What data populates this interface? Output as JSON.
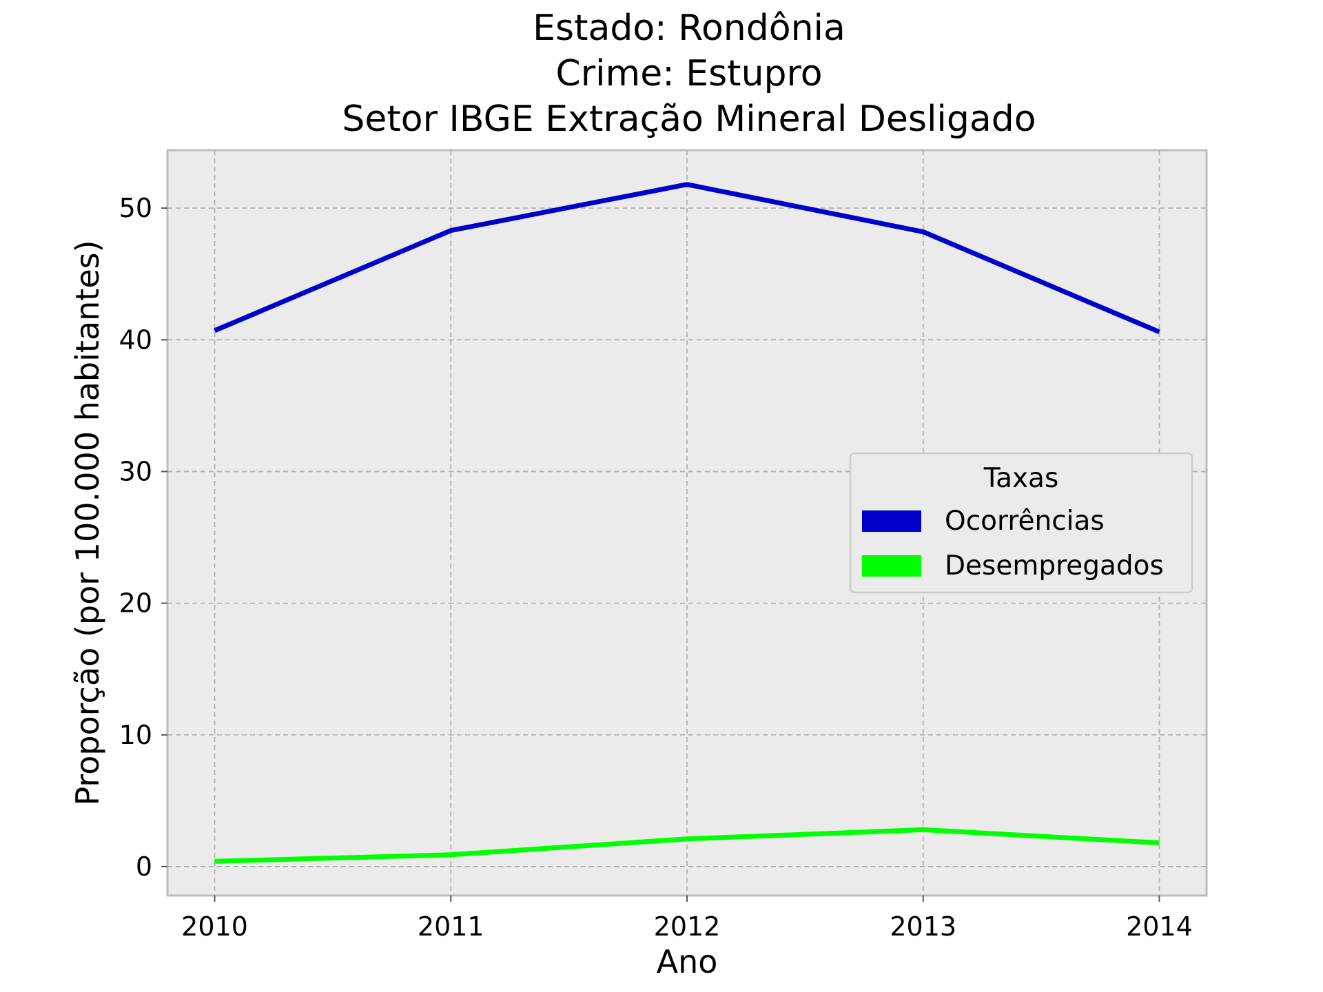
{
  "title_lines": [
    "Estado: Rondônia",
    "Crime: Estupro",
    "Setor IBGE  Extração Mineral   Desligado"
  ],
  "chart_data": {
    "type": "line",
    "x": [
      2010,
      2011,
      2012,
      2013,
      2014
    ],
    "series": [
      {
        "name": "Ocorrências",
        "color": "#0000cc",
        "values": [
          40.7,
          48.3,
          51.8,
          48.2,
          40.6
        ]
      },
      {
        "name": "Desempregados",
        "color": "#00ff00",
        "values": [
          0.4,
          0.9,
          2.1,
          2.8,
          1.8
        ]
      }
    ],
    "xlabel": "Ano",
    "ylabel": "Proporção (por 100.000 habitantes)",
    "xticks": [
      "2010",
      "2011",
      "2012",
      "2013",
      "2014"
    ],
    "yticks": [
      "0",
      "10",
      "20",
      "30",
      "40",
      "50"
    ],
    "xlim": [
      2009.8,
      2014.2
    ],
    "ylim": [
      -2.2,
      54.4
    ],
    "grid": true,
    "legend": {
      "title": "Taxas",
      "position": "center-right"
    },
    "plot_background": "#ebebeb"
  }
}
